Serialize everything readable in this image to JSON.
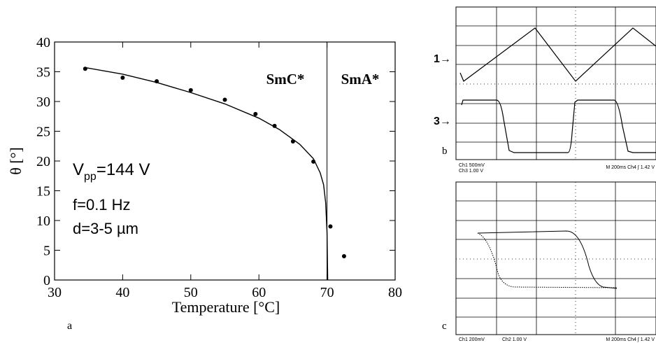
{
  "chart_data": {
    "type": "scatter",
    "panel_label": "a",
    "xlabel": "Temperature [°C]",
    "ylabel": "θ [°]",
    "xlim": [
      30,
      80
    ],
    "xticks": [
      30,
      40,
      50,
      60,
      70,
      80
    ],
    "ylim": [
      0,
      40
    ],
    "yticks": [
      0,
      5,
      10,
      15,
      20,
      25,
      30,
      35,
      40
    ],
    "grid": false,
    "series": [
      {
        "style": "points",
        "color": "#000000",
        "x": [
          34.5,
          40,
          45,
          50,
          55,
          59.5,
          62.3,
          65,
          68,
          70.5,
          72.5
        ],
        "values": [
          35.5,
          34,
          33.4,
          31.9,
          30.3,
          27.9,
          25.9,
          23.3,
          19.9,
          9,
          4
        ]
      },
      {
        "style": "line",
        "color": "#000000",
        "x": [
          34.5,
          40,
          45,
          50,
          55,
          60,
          63,
          66,
          68,
          69,
          69.5,
          69.8,
          70,
          70.1
        ],
        "values": [
          35.7,
          34.6,
          33.2,
          31.5,
          29.6,
          27.2,
          25.3,
          22.8,
          20.4,
          18,
          16,
          13,
          8,
          0
        ]
      }
    ],
    "transition_x": 70,
    "phase_labels": [
      "SmC*",
      "SmA*"
    ],
    "annotations": {
      "v": "V",
      "v_sub": "pp",
      "v_rest": "=144 V",
      "freq": "f=0.1 Hz",
      "thickness": "d=3-5  µm"
    }
  },
  "scope_b": {
    "label": "b",
    "markers": [
      "1→",
      "3→"
    ],
    "footer": [
      "Ch1   500mV",
      "Ch3   1.00 V",
      "M 200ms  Ch4 ∫    1.42 V"
    ]
  },
  "scope_c": {
    "label": "c",
    "footer": [
      "Ch1   200mV",
      "Ch2   1.00 V",
      "M 200ms  Ch4 ∫   1.42 V"
    ]
  }
}
